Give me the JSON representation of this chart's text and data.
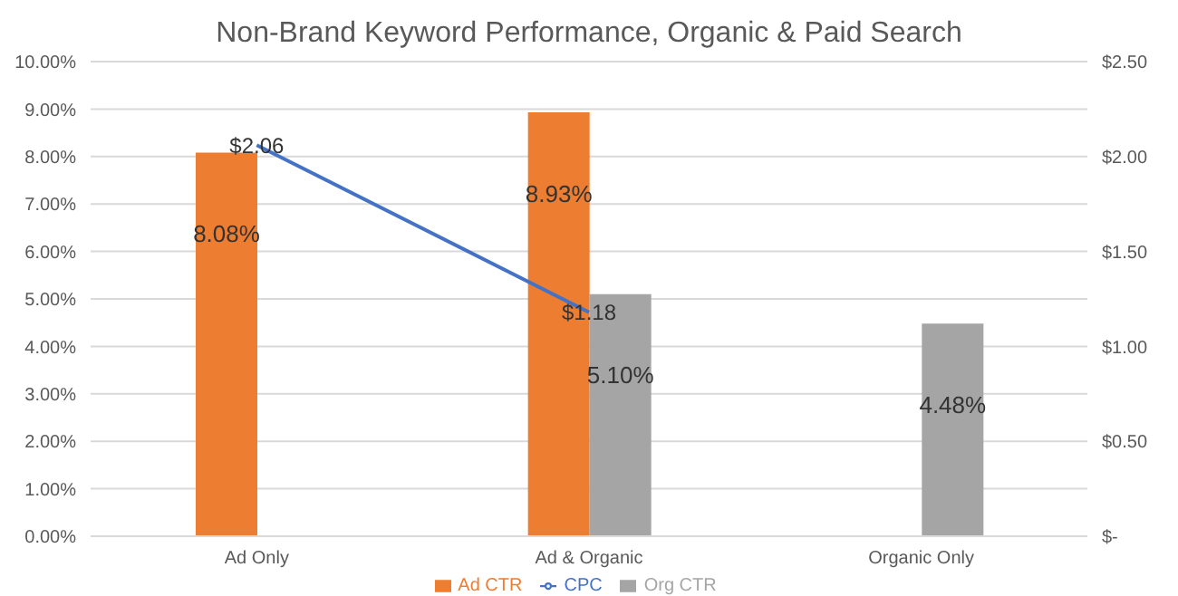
{
  "chart_data": {
    "type": "bar",
    "title": "Non-Brand Keyword Performance, Organic & Paid Search",
    "categories": [
      "Ad Only",
      "Ad & Organic",
      "Organic Only"
    ],
    "series": [
      {
        "name": "Ad CTR",
        "color": "#ed7d31",
        "values": [
          8.08,
          8.93,
          null
        ],
        "value_labels": [
          "8.08%",
          "8.93%",
          null
        ]
      },
      {
        "name": "Org CTR",
        "color": "#a5a5a5",
        "values": [
          null,
          5.1,
          4.48
        ],
        "value_labels": [
          null,
          "5.10%",
          "4.48%"
        ]
      },
      {
        "name": "CPC",
        "type": "line",
        "axis": "y2",
        "color": "#4472c4",
        "values": [
          2.06,
          1.18,
          null
        ],
        "value_labels": [
          "$2.06",
          "$1.18",
          null
        ]
      }
    ],
    "ylim": [
      0,
      10
    ],
    "yticks": [
      {
        "value": 0,
        "label": "0.00%"
      },
      {
        "value": 1,
        "label": "1.00%"
      },
      {
        "value": 2,
        "label": "2.00%"
      },
      {
        "value": 3,
        "label": "3.00%"
      },
      {
        "value": 4,
        "label": "4.00%"
      },
      {
        "value": 5,
        "label": "5.00%"
      },
      {
        "value": 6,
        "label": "6.00%"
      },
      {
        "value": 7,
        "label": "7.00%"
      },
      {
        "value": 8,
        "label": "8.00%"
      },
      {
        "value": 9,
        "label": "9.00%"
      },
      {
        "value": 10,
        "label": "10.00%"
      }
    ],
    "y2lim": [
      0,
      2.5
    ],
    "y2ticks": [
      {
        "value": 0,
        "label": "$-"
      },
      {
        "value": 0.5,
        "label": "$0.50"
      },
      {
        "value": 1,
        "label": "$1.00"
      },
      {
        "value": 1.5,
        "label": "$1.50"
      },
      {
        "value": 2,
        "label": "$2.00"
      },
      {
        "value": 2.5,
        "label": "$2.50"
      }
    ],
    "grid": "y",
    "legend": "bottom",
    "marker": "none"
  }
}
